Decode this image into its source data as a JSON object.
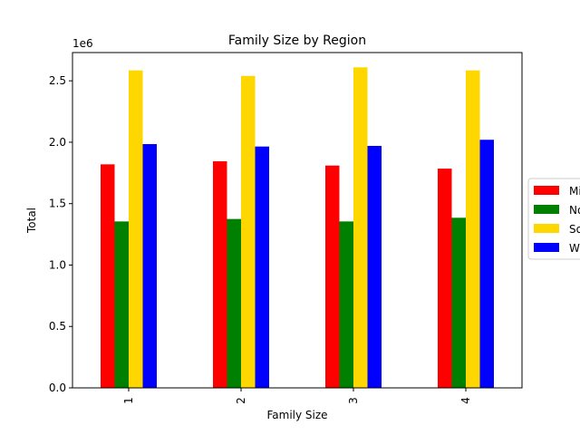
{
  "chart_data": {
    "type": "bar",
    "title": "Family Size by Region",
    "xlabel": "Family Size",
    "ylabel": "Total",
    "offset_label": "1e6",
    "categories": [
      "1",
      "2",
      "3",
      "4"
    ],
    "ylim": [
      0,
      2730000
    ],
    "yticks": [
      0,
      500000,
      1000000,
      1500000,
      2000000,
      2500000
    ],
    "ytick_labels": [
      "0.0",
      "0.5",
      "1.0",
      "1.5",
      "2.0",
      "2.5"
    ],
    "legend_position": "center-right",
    "series": [
      {
        "name": "Midwest",
        "legend_text": "Mi",
        "color": "#ff0000",
        "values": [
          1820000,
          1845000,
          1810000,
          1785000
        ]
      },
      {
        "name": "Northeast",
        "legend_text": "No",
        "color": "#008000",
        "values": [
          1355000,
          1375000,
          1355000,
          1385000
        ]
      },
      {
        "name": "South",
        "legend_text": "So",
        "color": "#ffd700",
        "values": [
          2585000,
          2540000,
          2610000,
          2585000
        ]
      },
      {
        "name": "West",
        "legend_text": "W",
        "color": "#0000ff",
        "values": [
          1985000,
          1965000,
          1970000,
          2020000
        ]
      }
    ]
  }
}
